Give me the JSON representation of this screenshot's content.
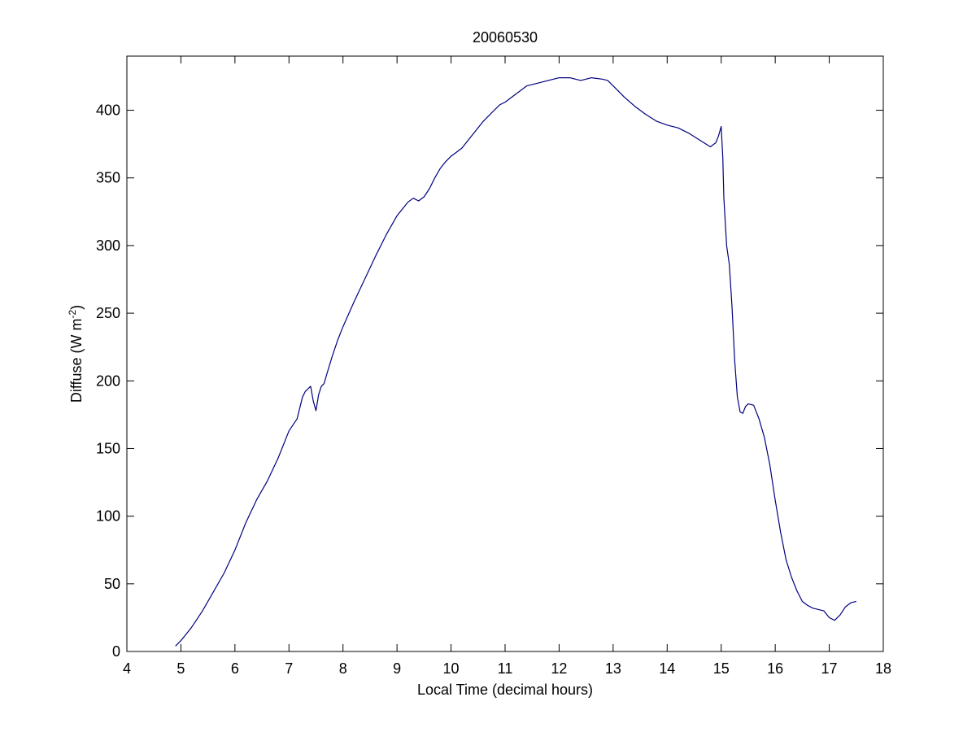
{
  "chart_data": {
    "type": "line",
    "title": "20060530",
    "xlabel": "Local Time (decimal hours)",
    "ylabel": {
      "prefix": "Diffuse (W m",
      "superscript": "-2",
      "suffix": ")"
    },
    "xlim": [
      4,
      18
    ],
    "ylim": [
      0,
      440
    ],
    "xticks": [
      4,
      5,
      6,
      7,
      8,
      9,
      10,
      11,
      12,
      13,
      14,
      15,
      16,
      17,
      18
    ],
    "yticks": [
      0,
      50,
      100,
      150,
      200,
      250,
      300,
      350,
      400
    ],
    "grid": false,
    "line_color": "#000080",
    "series": [
      {
        "x": [
          4.9,
          5.0,
          5.2,
          5.4,
          5.6,
          5.8,
          6.0,
          6.2,
          6.4,
          6.6,
          6.8,
          7.0,
          7.15,
          7.25,
          7.3,
          7.4,
          7.45,
          7.5,
          7.55,
          7.6,
          7.65,
          7.7,
          7.8,
          7.9,
          8.0,
          8.2,
          8.4,
          8.6,
          8.8,
          9.0,
          9.2,
          9.3,
          9.4,
          9.5,
          9.6,
          9.7,
          9.8,
          9.9,
          10.0,
          10.2,
          10.4,
          10.6,
          10.8,
          10.9,
          11.0,
          11.2,
          11.4,
          11.6,
          11.8,
          12.0,
          12.2,
          12.4,
          12.6,
          12.8,
          12.9,
          13.0,
          13.2,
          13.4,
          13.6,
          13.8,
          14.0,
          14.2,
          14.4,
          14.6,
          14.8,
          14.9,
          14.95,
          15.0,
          15.03,
          15.05,
          15.1,
          15.15,
          15.2,
          15.25,
          15.3,
          15.35,
          15.4,
          15.45,
          15.5,
          15.6,
          15.7,
          15.8,
          15.9,
          16.0,
          16.1,
          16.2,
          16.3,
          16.4,
          16.5,
          16.6,
          16.7,
          16.8,
          16.9,
          17.0,
          17.1,
          17.2,
          17.3,
          17.4,
          17.5
        ],
        "y": [
          4,
          8,
          18,
          30,
          44,
          58,
          75,
          95,
          112,
          126,
          143,
          163,
          172,
          188,
          192,
          196,
          185,
          178,
          190,
          196,
          198,
          205,
          218,
          230,
          240,
          258,
          275,
          292,
          308,
          322,
          332,
          335,
          333,
          336,
          342,
          350,
          357,
          362,
          366,
          372,
          382,
          392,
          400,
          404,
          406,
          412,
          418,
          420,
          422,
          424,
          424,
          422,
          424,
          423,
          422,
          418,
          410,
          403,
          397,
          392,
          389,
          387,
          383,
          378,
          373,
          376,
          381,
          388,
          365,
          335,
          300,
          286,
          255,
          215,
          188,
          177,
          176,
          181,
          183,
          182,
          172,
          158,
          138,
          112,
          88,
          68,
          55,
          45,
          37,
          34,
          32,
          31,
          30,
          25,
          23,
          27,
          33,
          36,
          37
        ]
      }
    ]
  }
}
